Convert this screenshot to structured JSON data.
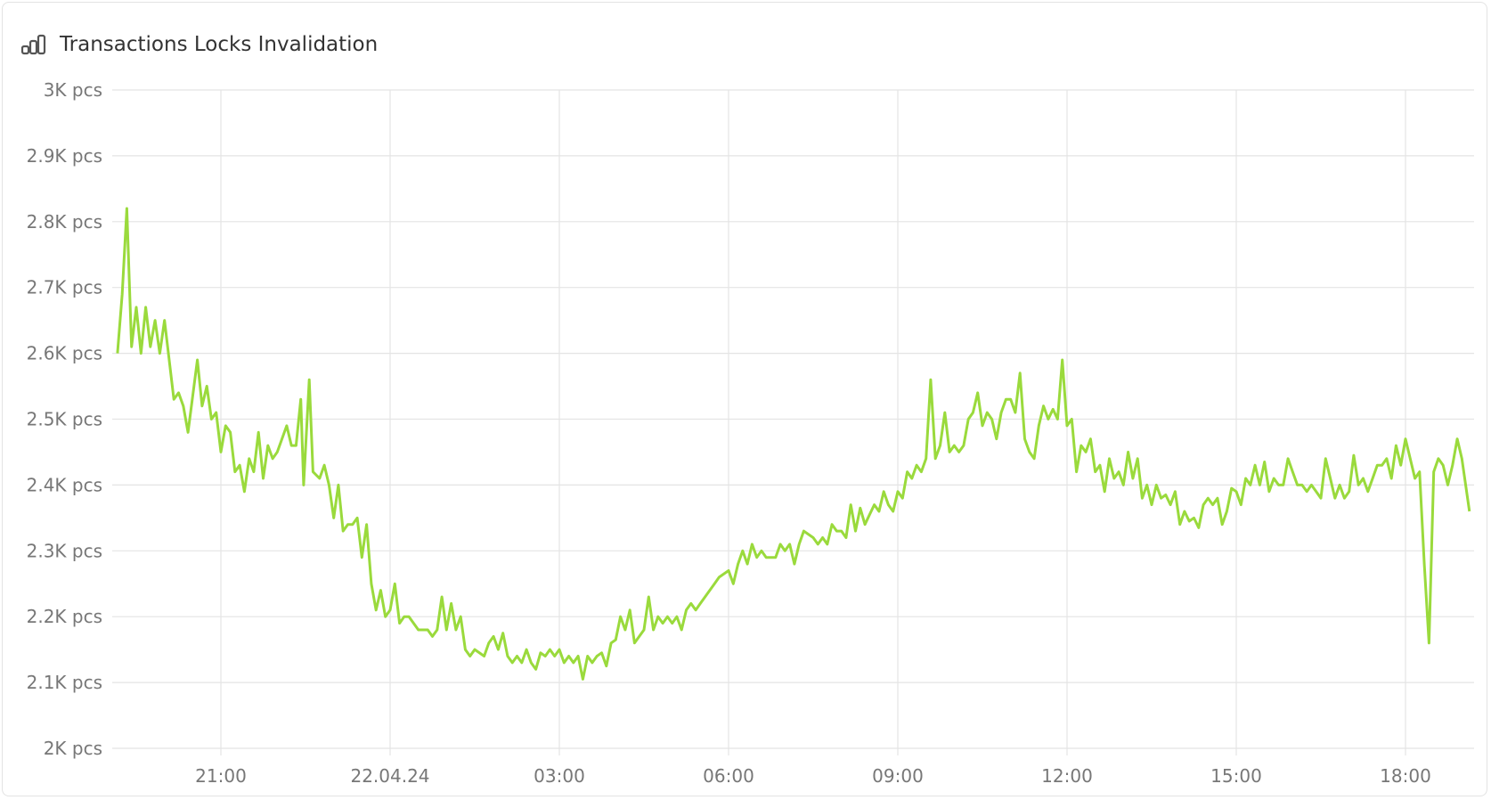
{
  "title": "Transactions Locks Invalidation",
  "icon": "bar-chart-icon",
  "chart_data": {
    "type": "line",
    "title": "Transactions Locks Invalidation",
    "unit": "pcs",
    "color": "#9ada3c",
    "grid": true,
    "ylim": [
      2000,
      3000
    ],
    "y_ticks": [
      {
        "value": 3000,
        "label": "3K pcs"
      },
      {
        "value": 2900,
        "label": "2.9K pcs"
      },
      {
        "value": 2800,
        "label": "2.8K pcs"
      },
      {
        "value": 2700,
        "label": "2.7K pcs"
      },
      {
        "value": 2600,
        "label": "2.6K pcs"
      },
      {
        "value": 2500,
        "label": "2.5K pcs"
      },
      {
        "value": 2400,
        "label": "2.4K pcs"
      },
      {
        "value": 2300,
        "label": "2.3K pcs"
      },
      {
        "value": 2200,
        "label": "2.2K pcs"
      },
      {
        "value": 2100,
        "label": "2.1K pcs"
      },
      {
        "value": 2000,
        "label": "2K pcs"
      }
    ],
    "x_ticks": [
      {
        "value": "21.04.24 21:00",
        "label": "21:00"
      },
      {
        "value": "22.04.24 00:00",
        "label": "22.04.24"
      },
      {
        "value": "22.04.24 03:00",
        "label": "03:00"
      },
      {
        "value": "22.04.24 06:00",
        "label": "06:00"
      },
      {
        "value": "22.04.24 09:00",
        "label": "09:00"
      },
      {
        "value": "22.04.24 12:00",
        "label": "12:00"
      },
      {
        "value": "22.04.24 15:00",
        "label": "15:00"
      },
      {
        "value": "22.04.24 18:00",
        "label": "18:00"
      }
    ],
    "xlim": [
      "21.04.24 19:00",
      "22.04.24 19:13"
    ],
    "points": [
      [
        "21.04.24 19:10",
        2600
      ],
      [
        "21.04.24 19:15",
        2690
      ],
      [
        "21.04.24 19:20",
        2820
      ],
      [
        "21.04.24 19:25",
        2610
      ],
      [
        "21.04.24 19:30",
        2670
      ],
      [
        "21.04.24 19:35",
        2600
      ],
      [
        "21.04.24 19:40",
        2670
      ],
      [
        "21.04.24 19:45",
        2610
      ],
      [
        "21.04.24 19:50",
        2650
      ],
      [
        "21.04.24 19:55",
        2600
      ],
      [
        "21.04.24 20:00",
        2650
      ],
      [
        "21.04.24 20:10",
        2530
      ],
      [
        "21.04.24 20:15",
        2540
      ],
      [
        "21.04.24 20:20",
        2520
      ],
      [
        "21.04.24 20:25",
        2480
      ],
      [
        "21.04.24 20:35",
        2590
      ],
      [
        "21.04.24 20:40",
        2520
      ],
      [
        "21.04.24 20:45",
        2550
      ],
      [
        "21.04.24 20:50",
        2500
      ],
      [
        "21.04.24 20:55",
        2510
      ],
      [
        "21.04.24 21:00",
        2450
      ],
      [
        "21.04.24 21:05",
        2490
      ],
      [
        "21.04.24 21:10",
        2480
      ],
      [
        "21.04.24 21:15",
        2420
      ],
      [
        "21.04.24 21:20",
        2430
      ],
      [
        "21.04.24 21:25",
        2390
      ],
      [
        "21.04.24 21:30",
        2440
      ],
      [
        "21.04.24 21:35",
        2420
      ],
      [
        "21.04.24 21:40",
        2480
      ],
      [
        "21.04.24 21:45",
        2410
      ],
      [
        "21.04.24 21:50",
        2460
      ],
      [
        "21.04.24 21:55",
        2440
      ],
      [
        "21.04.24 22:00",
        2450
      ],
      [
        "21.04.24 22:10",
        2490
      ],
      [
        "21.04.24 22:15",
        2460
      ],
      [
        "21.04.24 22:20",
        2460
      ],
      [
        "21.04.24 22:25",
        2530
      ],
      [
        "21.04.24 22:28",
        2400
      ],
      [
        "21.04.24 22:34",
        2560
      ],
      [
        "21.04.24 22:38",
        2420
      ],
      [
        "21.04.24 22:45",
        2410
      ],
      [
        "21.04.24 22:50",
        2430
      ],
      [
        "21.04.24 22:55",
        2400
      ],
      [
        "21.04.24 23:00",
        2350
      ],
      [
        "21.04.24 23:05",
        2400
      ],
      [
        "21.04.24 23:10",
        2330
      ],
      [
        "21.04.24 23:15",
        2340
      ],
      [
        "21.04.24 23:20",
        2340
      ],
      [
        "21.04.24 23:25",
        2350
      ],
      [
        "21.04.24 23:30",
        2290
      ],
      [
        "21.04.24 23:35",
        2340
      ],
      [
        "21.04.24 23:40",
        2250
      ],
      [
        "21.04.24 23:45",
        2210
      ],
      [
        "21.04.24 23:50",
        2240
      ],
      [
        "21.04.24 23:55",
        2200
      ],
      [
        "22.04.24 00:00",
        2210
      ],
      [
        "22.04.24 00:05",
        2250
      ],
      [
        "22.04.24 00:10",
        2190
      ],
      [
        "22.04.24 00:15",
        2200
      ],
      [
        "22.04.24 00:20",
        2200
      ],
      [
        "22.04.24 00:30",
        2180
      ],
      [
        "22.04.24 00:40",
        2180
      ],
      [
        "22.04.24 00:45",
        2170
      ],
      [
        "22.04.24 00:50",
        2180
      ],
      [
        "22.04.24 00:55",
        2230
      ],
      [
        "22.04.24 01:00",
        2180
      ],
      [
        "22.04.24 01:05",
        2220
      ],
      [
        "22.04.24 01:10",
        2180
      ],
      [
        "22.04.24 01:15",
        2200
      ],
      [
        "22.04.24 01:20",
        2150
      ],
      [
        "22.04.24 01:25",
        2140
      ],
      [
        "22.04.24 01:30",
        2150
      ],
      [
        "22.04.24 01:40",
        2140
      ],
      [
        "22.04.24 01:45",
        2160
      ],
      [
        "22.04.24 01:50",
        2170
      ],
      [
        "22.04.24 01:55",
        2150
      ],
      [
        "22.04.24 02:00",
        2175
      ],
      [
        "22.04.24 02:05",
        2140
      ],
      [
        "22.04.24 02:10",
        2130
      ],
      [
        "22.04.24 02:15",
        2140
      ],
      [
        "22.04.24 02:20",
        2130
      ],
      [
        "22.04.24 02:25",
        2150
      ],
      [
        "22.04.24 02:30",
        2130
      ],
      [
        "22.04.24 02:35",
        2120
      ],
      [
        "22.04.24 02:40",
        2145
      ],
      [
        "22.04.24 02:45",
        2140
      ],
      [
        "22.04.24 02:50",
        2150
      ],
      [
        "22.04.24 02:55",
        2140
      ],
      [
        "22.04.24 03:00",
        2150
      ],
      [
        "22.04.24 03:05",
        2130
      ],
      [
        "22.04.24 03:10",
        2140
      ],
      [
        "22.04.24 03:15",
        2130
      ],
      [
        "22.04.24 03:20",
        2140
      ],
      [
        "22.04.24 03:25",
        2105
      ],
      [
        "22.04.24 03:30",
        2140
      ],
      [
        "22.04.24 03:35",
        2130
      ],
      [
        "22.04.24 03:40",
        2140
      ],
      [
        "22.04.24 03:45",
        2145
      ],
      [
        "22.04.24 03:50",
        2125
      ],
      [
        "22.04.24 03:55",
        2160
      ],
      [
        "22.04.24 04:00",
        2165
      ],
      [
        "22.04.24 04:05",
        2200
      ],
      [
        "22.04.24 04:10",
        2180
      ],
      [
        "22.04.24 04:15",
        2210
      ],
      [
        "22.04.24 04:20",
        2160
      ],
      [
        "22.04.24 04:25",
        2170
      ],
      [
        "22.04.24 04:30",
        2180
      ],
      [
        "22.04.24 04:35",
        2230
      ],
      [
        "22.04.24 04:40",
        2180
      ],
      [
        "22.04.24 04:45",
        2200
      ],
      [
        "22.04.24 04:50",
        2190
      ],
      [
        "22.04.24 04:55",
        2200
      ],
      [
        "22.04.24 05:00",
        2190
      ],
      [
        "22.04.24 05:05",
        2200
      ],
      [
        "22.04.24 05:10",
        2180
      ],
      [
        "22.04.24 05:15",
        2210
      ],
      [
        "22.04.24 05:20",
        2220
      ],
      [
        "22.04.24 05:25",
        2210
      ],
      [
        "22.04.24 05:30",
        2220
      ],
      [
        "22.04.24 05:35",
        2230
      ],
      [
        "22.04.24 05:40",
        2240
      ],
      [
        "22.04.24 05:45",
        2250
      ],
      [
        "22.04.24 05:50",
        2260
      ],
      [
        "22.04.24 06:00",
        2270
      ],
      [
        "22.04.24 06:05",
        2250
      ],
      [
        "22.04.24 06:10",
        2280
      ],
      [
        "22.04.24 06:15",
        2300
      ],
      [
        "22.04.24 06:20",
        2280
      ],
      [
        "22.04.24 06:25",
        2310
      ],
      [
        "22.04.24 06:30",
        2290
      ],
      [
        "22.04.24 06:35",
        2300
      ],
      [
        "22.04.24 06:40",
        2290
      ],
      [
        "22.04.24 06:50",
        2290
      ],
      [
        "22.04.24 06:55",
        2310
      ],
      [
        "22.04.24 07:00",
        2300
      ],
      [
        "22.04.24 07:05",
        2310
      ],
      [
        "22.04.24 07:10",
        2280
      ],
      [
        "22.04.24 07:15",
        2310
      ],
      [
        "22.04.24 07:20",
        2330
      ],
      [
        "22.04.24 07:30",
        2320
      ],
      [
        "22.04.24 07:35",
        2310
      ],
      [
        "22.04.24 07:40",
        2320
      ],
      [
        "22.04.24 07:45",
        2310
      ],
      [
        "22.04.24 07:50",
        2340
      ],
      [
        "22.04.24 07:55",
        2330
      ],
      [
        "22.04.24 08:00",
        2330
      ],
      [
        "22.04.24 08:05",
        2320
      ],
      [
        "22.04.24 08:10",
        2370
      ],
      [
        "22.04.24 08:15",
        2330
      ],
      [
        "22.04.24 08:20",
        2365
      ],
      [
        "22.04.24 08:25",
        2340
      ],
      [
        "22.04.24 08:30",
        2355
      ],
      [
        "22.04.24 08:35",
        2370
      ],
      [
        "22.04.24 08:40",
        2360
      ],
      [
        "22.04.24 08:45",
        2390
      ],
      [
        "22.04.24 08:50",
        2370
      ],
      [
        "22.04.24 08:55",
        2360
      ],
      [
        "22.04.24 09:00",
        2390
      ],
      [
        "22.04.24 09:05",
        2380
      ],
      [
        "22.04.24 09:10",
        2420
      ],
      [
        "22.04.24 09:15",
        2410
      ],
      [
        "22.04.24 09:20",
        2430
      ],
      [
        "22.04.24 09:25",
        2420
      ],
      [
        "22.04.24 09:30",
        2440
      ],
      [
        "22.04.24 09:35",
        2560
      ],
      [
        "22.04.24 09:40",
        2440
      ],
      [
        "22.04.24 09:45",
        2460
      ],
      [
        "22.04.24 09:50",
        2510
      ],
      [
        "22.04.24 09:55",
        2450
      ],
      [
        "22.04.24 10:00",
        2460
      ],
      [
        "22.04.24 10:05",
        2450
      ],
      [
        "22.04.24 10:10",
        2460
      ],
      [
        "22.04.24 10:15",
        2500
      ],
      [
        "22.04.24 10:20",
        2510
      ],
      [
        "22.04.24 10:25",
        2540
      ],
      [
        "22.04.24 10:30",
        2490
      ],
      [
        "22.04.24 10:35",
        2510
      ],
      [
        "22.04.24 10:40",
        2500
      ],
      [
        "22.04.24 10:45",
        2470
      ],
      [
        "22.04.24 10:50",
        2510
      ],
      [
        "22.04.24 10:55",
        2530
      ],
      [
        "22.04.24 11:00",
        2530
      ],
      [
        "22.04.24 11:05",
        2510
      ],
      [
        "22.04.24 11:10",
        2570
      ],
      [
        "22.04.24 11:15",
        2470
      ],
      [
        "22.04.24 11:20",
        2450
      ],
      [
        "22.04.24 11:25",
        2440
      ],
      [
        "22.04.24 11:30",
        2490
      ],
      [
        "22.04.24 11:35",
        2520
      ],
      [
        "22.04.24 11:40",
        2500
      ],
      [
        "22.04.24 11:45",
        2515
      ],
      [
        "22.04.24 11:50",
        2500
      ],
      [
        "22.04.24 11:55",
        2590
      ],
      [
        "22.04.24 12:00",
        2490
      ],
      [
        "22.04.24 12:05",
        2500
      ],
      [
        "22.04.24 12:10",
        2420
      ],
      [
        "22.04.24 12:15",
        2460
      ],
      [
        "22.04.24 12:20",
        2450
      ],
      [
        "22.04.24 12:25",
        2470
      ],
      [
        "22.04.24 12:30",
        2420
      ],
      [
        "22.04.24 12:35",
        2430
      ],
      [
        "22.04.24 12:40",
        2390
      ],
      [
        "22.04.24 12:45",
        2440
      ],
      [
        "22.04.24 12:50",
        2410
      ],
      [
        "22.04.24 12:55",
        2420
      ],
      [
        "22.04.24 13:00",
        2400
      ],
      [
        "22.04.24 13:05",
        2450
      ],
      [
        "22.04.24 13:10",
        2410
      ],
      [
        "22.04.24 13:15",
        2440
      ],
      [
        "22.04.24 13:20",
        2380
      ],
      [
        "22.04.24 13:25",
        2400
      ],
      [
        "22.04.24 13:30",
        2370
      ],
      [
        "22.04.24 13:35",
        2400
      ],
      [
        "22.04.24 13:40",
        2380
      ],
      [
        "22.04.24 13:45",
        2385
      ],
      [
        "22.04.24 13:50",
        2370
      ],
      [
        "22.04.24 13:55",
        2390
      ],
      [
        "22.04.24 14:00",
        2340
      ],
      [
        "22.04.24 14:05",
        2360
      ],
      [
        "22.04.24 14:10",
        2345
      ],
      [
        "22.04.24 14:15",
        2350
      ],
      [
        "22.04.24 14:20",
        2335
      ],
      [
        "22.04.24 14:25",
        2370
      ],
      [
        "22.04.24 14:30",
        2380
      ],
      [
        "22.04.24 14:35",
        2370
      ],
      [
        "22.04.24 14:40",
        2380
      ],
      [
        "22.04.24 14:45",
        2340
      ],
      [
        "22.04.24 14:50",
        2360
      ],
      [
        "22.04.24 14:55",
        2395
      ],
      [
        "22.04.24 15:00",
        2390
      ],
      [
        "22.04.24 15:05",
        2370
      ],
      [
        "22.04.24 15:10",
        2410
      ],
      [
        "22.04.24 15:15",
        2400
      ],
      [
        "22.04.24 15:20",
        2430
      ],
      [
        "22.04.24 15:25",
        2400
      ],
      [
        "22.04.24 15:30",
        2435
      ],
      [
        "22.04.24 15:35",
        2390
      ],
      [
        "22.04.24 15:40",
        2410
      ],
      [
        "22.04.24 15:45",
        2400
      ],
      [
        "22.04.24 15:50",
        2400
      ],
      [
        "22.04.24 15:55",
        2440
      ],
      [
        "22.04.24 16:00",
        2420
      ],
      [
        "22.04.24 16:05",
        2400
      ],
      [
        "22.04.24 16:10",
        2400
      ],
      [
        "22.04.24 16:15",
        2390
      ],
      [
        "22.04.24 16:20",
        2400
      ],
      [
        "22.04.24 16:25",
        2390
      ],
      [
        "22.04.24 16:30",
        2380
      ],
      [
        "22.04.24 16:35",
        2440
      ],
      [
        "22.04.24 16:40",
        2410
      ],
      [
        "22.04.24 16:45",
        2380
      ],
      [
        "22.04.24 16:50",
        2400
      ],
      [
        "22.04.24 16:55",
        2380
      ],
      [
        "22.04.24 17:00",
        2390
      ],
      [
        "22.04.24 17:05",
        2445
      ],
      [
        "22.04.24 17:10",
        2400
      ],
      [
        "22.04.24 17:15",
        2410
      ],
      [
        "22.04.24 17:20",
        2390
      ],
      [
        "22.04.24 17:25",
        2410
      ],
      [
        "22.04.24 17:30",
        2430
      ],
      [
        "22.04.24 17:35",
        2430
      ],
      [
        "22.04.24 17:40",
        2440
      ],
      [
        "22.04.24 17:45",
        2410
      ],
      [
        "22.04.24 17:50",
        2460
      ],
      [
        "22.04.24 17:55",
        2430
      ],
      [
        "22.04.24 18:00",
        2470
      ],
      [
        "22.04.24 18:05",
        2440
      ],
      [
        "22.04.24 18:10",
        2410
      ],
      [
        "22.04.24 18:15",
        2420
      ],
      [
        "22.04.24 18:20",
        2280
      ],
      [
        "22.04.24 18:25",
        2160
      ],
      [
        "22.04.24 18:30",
        2420
      ],
      [
        "22.04.24 18:35",
        2440
      ],
      [
        "22.04.24 18:40",
        2430
      ],
      [
        "22.04.24 18:45",
        2400
      ],
      [
        "22.04.24 18:50",
        2430
      ],
      [
        "22.04.24 18:55",
        2470
      ],
      [
        "22.04.24 19:00",
        2440
      ],
      [
        "22.04.24 19:08",
        2360
      ]
    ]
  }
}
